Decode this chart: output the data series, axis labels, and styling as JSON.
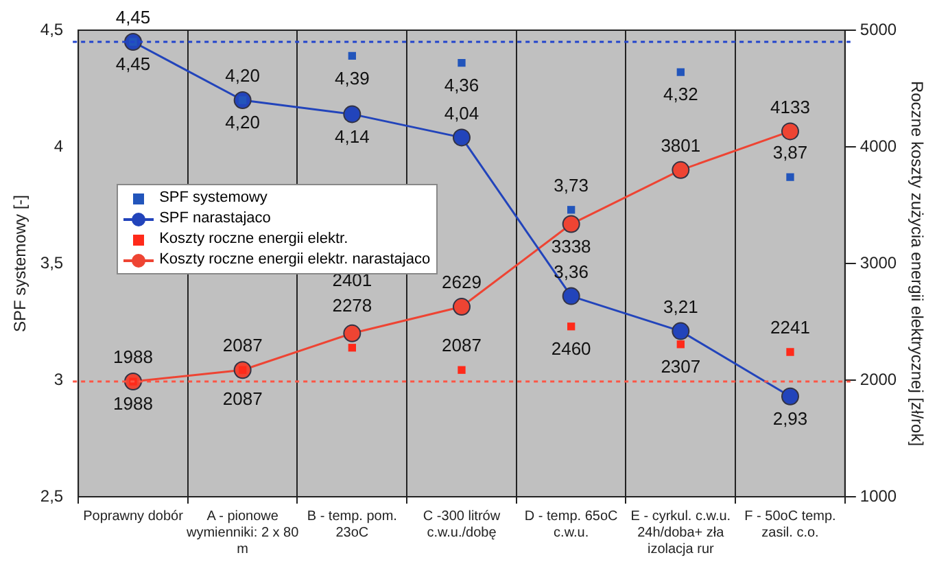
{
  "chart_data": {
    "type": "line",
    "ylabel": "SPF systemowy [-]",
    "y2label": "Roczne koszty zużycia energii elektrycznej [zł/rok]",
    "categories": [
      "Poprawny dobór",
      "A - pionowe wymienniki: 2 x 80 m",
      "B - temp. pom. 23oC",
      "C -300 litrów c.w.u./dobę",
      "D - temp. 65oC c.w.u.",
      "E - cyrkul. c.w.u. 24h/doba+ zła izolacja rur",
      "F - 50oC temp. zasil. c.o."
    ],
    "series": [
      {
        "name": "SPF systemowy",
        "type": "scatter",
        "marker": "square",
        "color": "#2255bb",
        "values": [
          4.45,
          4.2,
          4.39,
          4.36,
          3.73,
          4.32,
          3.87
        ],
        "value_labels": [
          "4,45",
          "4,20",
          "4,39",
          "4,36",
          "3,73",
          "4,32",
          "3,87"
        ]
      },
      {
        "name": "SPF narastajaco",
        "marker": "circle",
        "color": "#2244bb",
        "values": [
          4.45,
          4.2,
          4.14,
          4.04,
          3.36,
          3.21,
          2.93
        ],
        "value_labels": [
          "4,45",
          "4,20",
          "4,14",
          "4,04",
          "3,36",
          "3,21",
          "2,93"
        ]
      },
      {
        "name": "Koszty roczne energii elektr.",
        "type": "scatter",
        "marker": "square",
        "axis": "y2",
        "color": "#ff2a1a",
        "values": [
          1988,
          2087,
          2278,
          2087,
          2460,
          2307,
          2241
        ],
        "value_labels": [
          "1988",
          "2087",
          "2278",
          "2087",
          "2460",
          "2307",
          "2241"
        ]
      },
      {
        "name": "Koszty roczne energii elektr. narastajaco",
        "marker": "circle",
        "axis": "y2",
        "color": "#ee4433",
        "values": [
          1988,
          2087,
          2401,
          2629,
          3338,
          3801,
          4133
        ],
        "value_labels": [
          "1988",
          "2087",
          "2401",
          "2629",
          "3338",
          "3801",
          "4133"
        ]
      }
    ],
    "ylim": [
      2.5,
      4.5
    ],
    "yticks": [
      {
        "value": 2.5,
        "label": "2,5"
      },
      {
        "value": 3,
        "label": "3"
      },
      {
        "value": 3.5,
        "label": "3,5"
      },
      {
        "value": 4,
        "label": "4"
      },
      {
        "value": 4.5,
        "label": "4,5"
      }
    ],
    "y2lim": [
      1000,
      5000
    ],
    "y2ticks": [
      1000,
      2000,
      3000,
      4000,
      5000
    ],
    "ref_lines": [
      {
        "axis": "y",
        "value": 4.45,
        "color": "#2244cc",
        "line_style": "dotted"
      },
      {
        "axis": "y2",
        "value": 1988,
        "color": "#ff5544",
        "line_style": "dotted"
      }
    ],
    "grid": "x",
    "legend": "left"
  }
}
